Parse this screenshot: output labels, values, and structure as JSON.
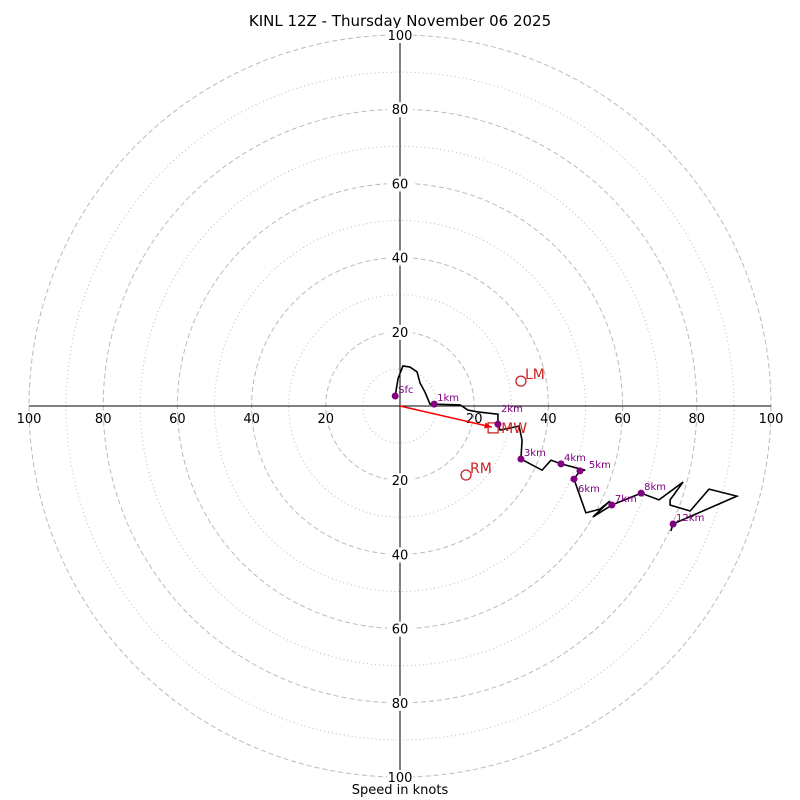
{
  "chart_data": {
    "type": "line",
    "subtype": "hodograph",
    "title": "KINL 12Z - Thursday November 06 2025",
    "xlabel": "Speed in knots",
    "range": [
      -100,
      100
    ],
    "ring_major": [
      20,
      40,
      60,
      80,
      100
    ],
    "ring_minor": [
      10,
      30,
      50,
      70,
      90
    ],
    "tick_labels": [
      "20",
      "40",
      "60",
      "80",
      "100"
    ],
    "trace": {
      "u": [
        -1.3,
        -0.5,
        0.8,
        2.7,
        4.6,
        5.4,
        6.7,
        8.1,
        9.2,
        16.2,
        18.3,
        21.0,
        26.4,
        26.4,
        27.0,
        32.1,
        32.9,
        32.6,
        38.3,
        40.7,
        43.4,
        49.9,
        48.5,
        46.9,
        50.1,
        53.9,
        56.6,
        52.0,
        57.1,
        65.0,
        69.8,
        76.3,
        72.8,
        72.8,
        78.2,
        83.3,
        90.8,
        73.6,
        73.0
      ],
      "v": [
        2.7,
        7.5,
        10.8,
        10.5,
        9.2,
        6.2,
        3.8,
        0.5,
        0.5,
        0.3,
        -1.1,
        -1.6,
        -2.2,
        -4.9,
        -6.5,
        -5.4,
        -9.2,
        -14.3,
        -17.3,
        -14.6,
        -15.6,
        -17.3,
        -17.5,
        -19.7,
        -28.8,
        -27.8,
        -25.6,
        -29.9,
        -26.7,
        -23.5,
        -25.3,
        -20.5,
        -25.3,
        -26.7,
        -28.3,
        -22.4,
        -24.3,
        -31.8,
        -33.7
      ]
    },
    "height_markers": [
      {
        "label": "Sfc",
        "u": -1.3,
        "v": 2.7
      },
      {
        "label": "1km",
        "u": 9.2,
        "v": 0.5
      },
      {
        "label": "2km",
        "u": 26.4,
        "v": -4.9
      },
      {
        "label": "3km",
        "u": 32.6,
        "v": -14.3
      },
      {
        "label": "4km",
        "u": 43.4,
        "v": -15.6
      },
      {
        "label": "5km",
        "u": 48.5,
        "v": -17.5
      },
      {
        "label": "6km",
        "u": 46.9,
        "v": -19.7
      },
      {
        "label": "7km",
        "u": 57.1,
        "v": -26.7
      },
      {
        "label": "8km",
        "u": 65.0,
        "v": -23.5
      },
      {
        "label": "12km",
        "u": 73.6,
        "v": -31.8
      }
    ],
    "storm_motion": [
      {
        "label": "LM",
        "u": 32.6,
        "v": 6.7,
        "shape": "circle"
      },
      {
        "label": "RM",
        "u": 17.8,
        "v": -18.6,
        "shape": "circle"
      },
      {
        "label": "MW",
        "u": 25.1,
        "v": -5.9,
        "shape": "square"
      }
    ],
    "shear_arrow": {
      "u": 24.8,
      "v": -5.7
    },
    "colors": {
      "trace": "#000000",
      "markers": "#800080",
      "motion": "#cc2222",
      "arrow": "#ff0000",
      "grid": "#bbbbbb"
    }
  }
}
